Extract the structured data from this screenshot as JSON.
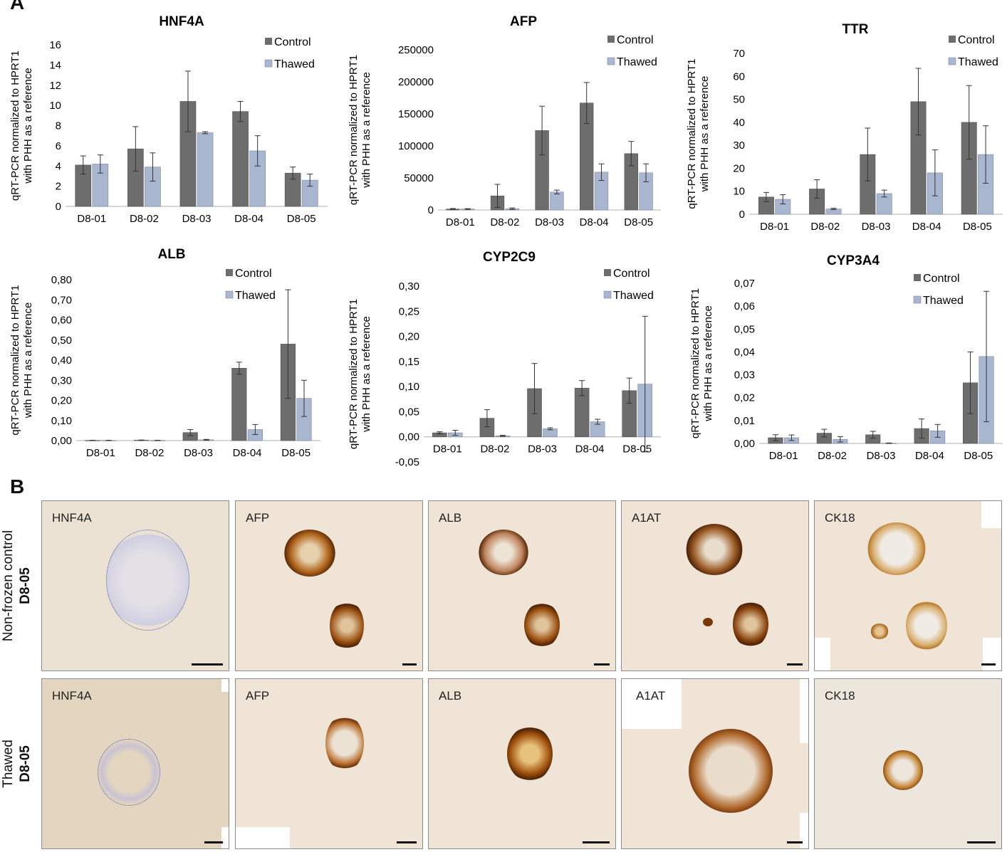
{
  "panel_a_label": "A",
  "panel_b_label": "B",
  "legend": {
    "control": "Control",
    "thawed": "Thawed"
  },
  "colors": {
    "control": "#6d6d6d",
    "thawed": "#a9b6cf",
    "axis": "#bfbfbf",
    "error": "#333333"
  },
  "ylabel_line1": "qRT-PCR normalized to HPRT1",
  "ylabel_line2": "with PHH as a reference",
  "chart_data": [
    {
      "type": "bar",
      "title": "HNF4A",
      "categories": [
        "D8-01",
        "D8-02",
        "D8-03",
        "D8-04",
        "D8-05"
      ],
      "series": [
        {
          "name": "Control",
          "values": [
            4.1,
            5.7,
            10.4,
            9.4,
            3.3
          ],
          "errors": [
            0.9,
            2.2,
            3.0,
            1.0,
            0.6
          ]
        },
        {
          "name": "Thawed",
          "values": [
            4.2,
            3.9,
            7.3,
            5.5,
            2.6
          ],
          "errors": [
            0.9,
            1.4,
            0.1,
            1.5,
            0.6
          ]
        }
      ],
      "ylim": [
        0,
        16
      ],
      "yticks": [
        "0",
        "2",
        "4",
        "6",
        "8",
        "10",
        "12",
        "14",
        "16"
      ],
      "ylabel": "qRT-PCR normalized to HPRT1 with PHH as a reference"
    },
    {
      "type": "bar",
      "title": "AFP",
      "categories": [
        "D8-01",
        "D8-02",
        "D8-03",
        "D8-04",
        "D8-05"
      ],
      "series": [
        {
          "name": "Control",
          "values": [
            1500,
            22000,
            124000,
            167000,
            88000
          ],
          "errors": [
            800,
            18000,
            38000,
            32000,
            19000
          ]
        },
        {
          "name": "Thawed",
          "values": [
            1500,
            2000,
            28000,
            59000,
            58000
          ],
          "errors": [
            600,
            1200,
            3000,
            13000,
            14000
          ]
        }
      ],
      "ylim": [
        0,
        250000
      ],
      "yticks": [
        "0",
        "50000",
        "100000",
        "150000",
        "200000",
        "250000"
      ],
      "ylabel": "qRT-PCR normalized to HPRT1 with PHH as a reference"
    },
    {
      "type": "bar",
      "title": "TTR",
      "categories": [
        "D8-01",
        "D8-02",
        "D8-03",
        "D8-04",
        "D8-05"
      ],
      "series": [
        {
          "name": "Control",
          "values": [
            7.5,
            11,
            26,
            49,
            40
          ],
          "errors": [
            2,
            4,
            11.5,
            14.5,
            16
          ]
        },
        {
          "name": "Thawed",
          "values": [
            6.5,
            2.3,
            9,
            18,
            26
          ],
          "errors": [
            2,
            0.3,
            1.5,
            10,
            12.5
          ]
        }
      ],
      "ylim": [
        0,
        70
      ],
      "yticks": [
        "0",
        "10",
        "20",
        "30",
        "40",
        "50",
        "60",
        "70"
      ],
      "ylabel": "qRT-PCR normalized to HPRT1 with PHH as a reference"
    },
    {
      "type": "bar",
      "title": "ALB",
      "categories": [
        "D8-01",
        "D8-02",
        "D8-03",
        "D8-04",
        "D8-05"
      ],
      "series": [
        {
          "name": "Control",
          "values": [
            0.001,
            0.002,
            0.04,
            0.36,
            0.48
          ],
          "errors": [
            0.0005,
            0.001,
            0.015,
            0.03,
            0.27
          ]
        },
        {
          "name": "Thawed",
          "values": [
            0.001,
            0.001,
            0.004,
            0.055,
            0.21
          ],
          "errors": [
            0.0005,
            0.0005,
            0.002,
            0.025,
            0.09
          ]
        }
      ],
      "ylim": [
        0,
        0.8
      ],
      "yticks": [
        "0,00",
        "0,10",
        "0,20",
        "0,30",
        "0,40",
        "0,50",
        "0,60",
        "0,70",
        "0,80"
      ],
      "ylabel": "qRT-PCR normalized to HPRT1 with PHH as a reference"
    },
    {
      "type": "bar",
      "title": "CYP2C9",
      "categories": [
        "D8-01",
        "D8-02",
        "D8-03",
        "D8-04",
        "D8-05"
      ],
      "series": [
        {
          "name": "Control",
          "values": [
            0.008,
            0.037,
            0.096,
            0.097,
            0.092
          ],
          "errors": [
            0.002,
            0.017,
            0.05,
            0.015,
            0.025
          ]
        },
        {
          "name": "Thawed",
          "values": [
            0.008,
            0.002,
            0.016,
            0.03,
            0.105
          ],
          "errors": [
            0.005,
            0.001,
            0.002,
            0.005,
            0.135
          ]
        }
      ],
      "ylim": [
        -0.05,
        0.3
      ],
      "yticks": [
        "-0,05",
        "0,00",
        "0,05",
        "0,10",
        "0,15",
        "0,20",
        "0,25",
        "0,30"
      ],
      "ylabel": "qRT-PCR normalized to HPRT1 with PHH as a reference"
    },
    {
      "type": "bar",
      "title": "CYP3A4",
      "categories": [
        "D8-01",
        "D8-02",
        "D8-03",
        "D8-04",
        "D8-05"
      ],
      "series": [
        {
          "name": "Control",
          "values": [
            0.0025,
            0.0045,
            0.0038,
            0.0065,
            0.0265
          ],
          "errors": [
            0.0013,
            0.0017,
            0.0015,
            0.0042,
            0.0135
          ]
        },
        {
          "name": "Thawed",
          "values": [
            0.0025,
            0.0018,
            0.0001,
            0.0055,
            0.038
          ],
          "errors": [
            0.0012,
            0.0012,
            0.0001,
            0.0028,
            0.0285
          ]
        }
      ],
      "ylim": [
        0,
        0.07
      ],
      "yticks": [
        "0,00",
        "0,01",
        "0,02",
        "0,03",
        "0,04",
        "0,05",
        "0,06",
        "0,07"
      ],
      "ylabel": "qRT-PCR normalized to HPRT1 with PHH as a reference"
    }
  ],
  "ihc": {
    "rows": [
      {
        "label_line1": "Non-frozen control",
        "label_line2": "D8-05",
        "tiles": [
          "HNF4A",
          "AFP",
          "ALB",
          "A1AT",
          "CK18"
        ]
      },
      {
        "label_line1": "Thawed",
        "label_line2": "D8-05",
        "tiles": [
          "HNF4A",
          "AFP",
          "ALB",
          "A1AT",
          "CK18"
        ]
      }
    ]
  }
}
